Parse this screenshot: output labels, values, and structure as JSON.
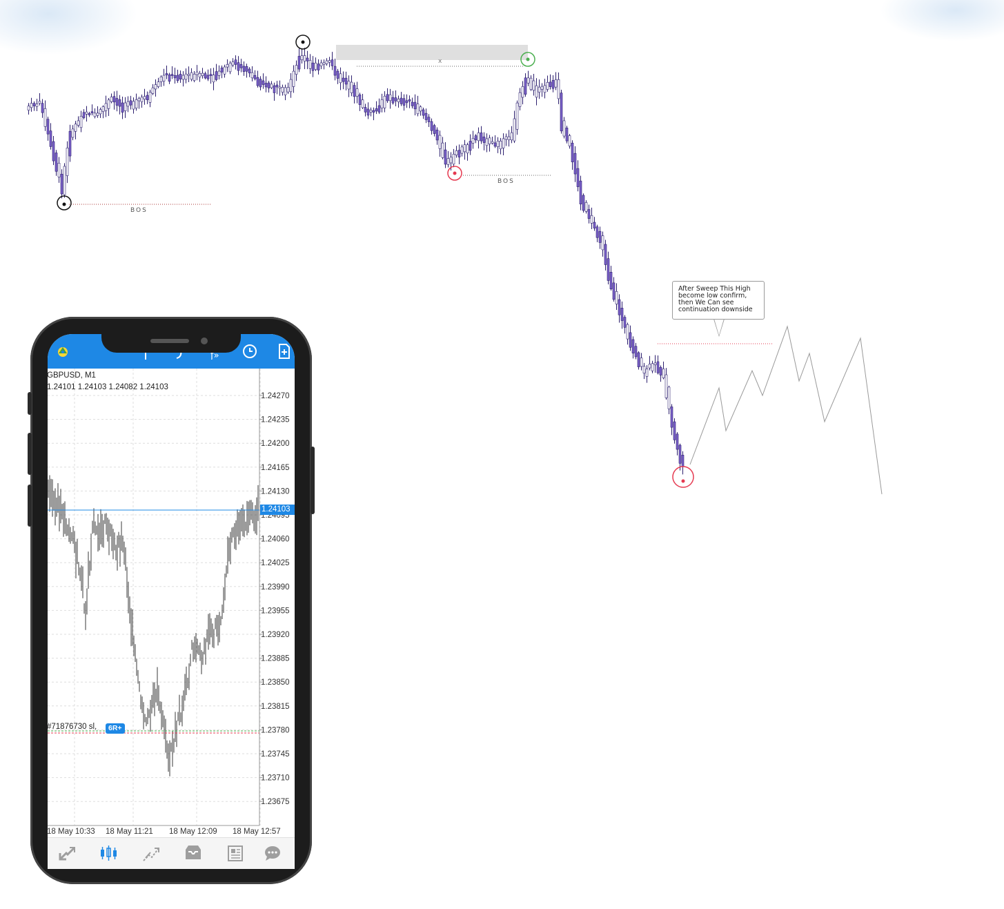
{
  "annotations": {
    "bos_label": "BOS",
    "zone_marker": "x",
    "callout_text": "After Sweep This High\nbecome  low confirm,\nthen We Can see\ncontinuation downside"
  },
  "phone": {
    "symbol": "GBPUSD, M1",
    "ohlc": "1.24101 1.24103 1.24082 1.24103",
    "current_price": "1.24103",
    "price_ticks": [
      "1.24270",
      "1.24235",
      "1.24200",
      "1.24165",
      "1.24130",
      "1.24095",
      "1.24060",
      "1.24025",
      "1.23990",
      "1.23955",
      "1.23920",
      "1.23885",
      "1.23850",
      "1.23815",
      "1.23780",
      "1.23745",
      "1.23710",
      "1.23675"
    ],
    "time_ticks": [
      "18 May 10:33",
      "18 May 11:21",
      "18 May 12:09",
      "18 May 12:57"
    ],
    "order_label": "#71876730 sl,",
    "order_badge": "6R+",
    "nav_icons": [
      "trade-icon",
      "quotes-chart-icon",
      "history-icon",
      "inbox-icon",
      "news-icon",
      "chat-icon"
    ],
    "appbar_icons": [
      "metatrader-logo-icon",
      "crosshair-icon",
      "indicators-icon",
      "objects-icon",
      "timeframe-clock-icon",
      "new-order-icon"
    ]
  },
  "colors": {
    "bull_candle": "#ffffff",
    "bear_candle": "#7b61c9",
    "accent_blue": "#1e88e5",
    "sweep_red": "#e53950",
    "confirm_green": "#4caf50"
  }
}
